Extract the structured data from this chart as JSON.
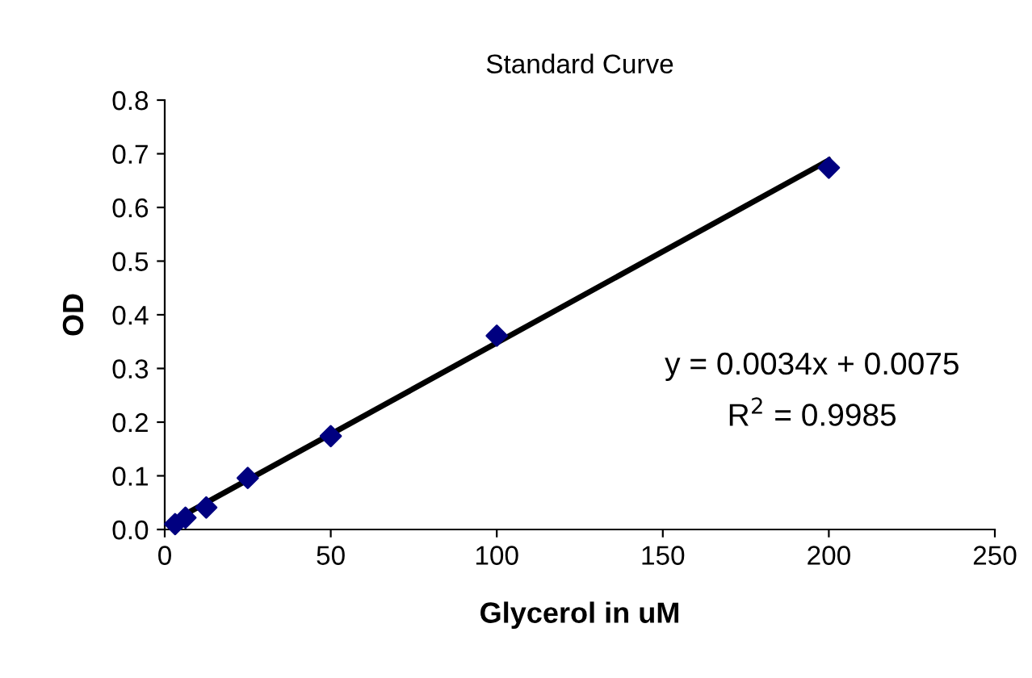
{
  "chart_data": {
    "type": "scatter",
    "title": "Standard Curve",
    "xlabel": "Glycerol in uM",
    "ylabel": "OD",
    "series": [
      {
        "color": "#000080",
        "marker": "diamond",
        "x": [
          3.125,
          6.25,
          12.5,
          25,
          50,
          100,
          200
        ],
        "values": [
          0.01,
          0.022,
          0.041,
          0.096,
          0.174,
          0.361,
          0.674
        ]
      },
      {
        "type": "line",
        "color": "#000000",
        "marker": "none",
        "line_style": "solid",
        "x": [
          3.125,
          200
        ],
        "values": [
          0.018,
          0.688
        ]
      }
    ],
    "annotations": [
      "y = 0.0034x + 0.0075",
      "R$^{2}$ = 0.9985"
    ],
    "xlim": [
      0,
      250
    ],
    "xticks": [
      0,
      50,
      100,
      150,
      200,
      250
    ],
    "ylim": [
      0,
      0.8
    ],
    "yticks": [
      {
        "value": 0,
        "label": "0.0"
      },
      {
        "value": 0.1,
        "label": "0.1"
      },
      {
        "value": 0.2,
        "label": "0.2"
      },
      {
        "value": 0.3,
        "label": "0.3"
      },
      {
        "value": 0.4,
        "label": "0.4"
      },
      {
        "value": 0.5,
        "label": "0.5"
      },
      {
        "value": 0.6,
        "label": "0.6"
      },
      {
        "value": 0.7,
        "label": "0.7"
      },
      {
        "value": 0.8,
        "label": "0.8"
      }
    ],
    "grid": false,
    "legend": false
  }
}
